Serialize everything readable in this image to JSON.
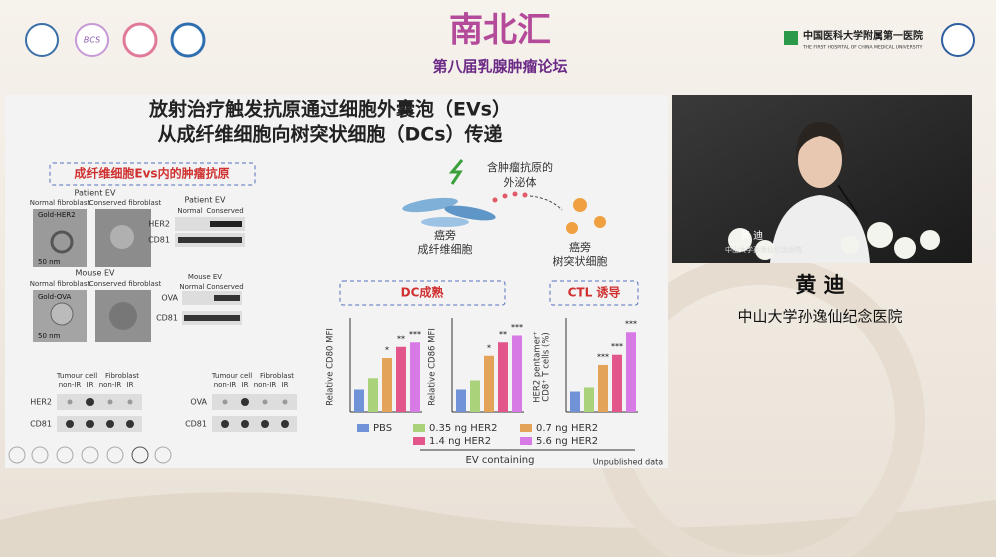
{
  "header": {
    "logo_left": "BCS",
    "title": "南北汇",
    "subtitle": "第八届乳腺肿瘤论坛",
    "hospital_cn": "中国医科大学附属第一医院",
    "hospital_en": "THE FIRST HOSPITAL OF CHINA MEDICAL UNIVERSITY"
  },
  "slide": {
    "title_lines": [
      "放射治疗触发抗原通过细胞外囊泡（EVs）",
      "从成纤维细胞向树突状细胞（DCs）传递"
    ],
    "section_label": "成纤维细胞Evs内的肿瘤抗原",
    "patient": {
      "heading": "Patient EV",
      "col1": "Normal fibroblast",
      "col2": "Conserved fibroblast",
      "gold": "Gold-HER2",
      "scale": "50 nm",
      "blot_heading": "Patient EV",
      "blot_col1": "Normal",
      "blot_col2": "Conserved",
      "row1": "HER2",
      "row2": "CD81"
    },
    "mouse": {
      "heading": "Mouse EV",
      "col1": "Normal fibroblast",
      "col2": "Conserved fibroblast",
      "gold": "Gold-OVA",
      "scale": "50 nm",
      "blot_heading": "Mouse EV",
      "blot_col1": "Normal",
      "blot_col2": "Conserved",
      "row1": "OVA",
      "row2": "CD81"
    },
    "dot_blots": [
      {
        "group1": "Tumour cell",
        "group2": "Fibroblast",
        "lanes": [
          "non-IR",
          "IR",
          "non-IR",
          "IR"
        ],
        "row1": "HER2",
        "row2": "CD81"
      },
      {
        "group1": "Tumour cell",
        "group2": "Fibroblast",
        "lanes": [
          "non-IR",
          "IR",
          "non-IR",
          "IR"
        ],
        "row1": "OVA",
        "row2": "CD81"
      }
    ],
    "diagram": {
      "exosome": [
        "含肿瘤抗原的",
        "外泌体"
      ],
      "fibroblast": [
        "癌旁",
        "成纤维细胞"
      ],
      "dc": [
        "癌旁",
        "树突状细胞"
      ]
    },
    "dc_label": "DC成熟",
    "ctl_label": "CTL 诱导",
    "legend": [
      {
        "name": "PBS",
        "color": "#6f93d6"
      },
      {
        "name": "0.35 ng HER2",
        "color": "#a9d27a"
      },
      {
        "name": "0.7 ng HER2",
        "color": "#e3a45a"
      },
      {
        "name": "1.4 ng HER2",
        "color": "#e2568c"
      },
      {
        "name": "5.6 ng HER2",
        "color": "#d77ae6"
      }
    ],
    "legend_caption": "EV containing",
    "note": "Unpublished data"
  },
  "chart_data": [
    {
      "type": "bar",
      "y_label": [
        "Relative CD80 MFI"
      ],
      "values": [
        1.0,
        1.5,
        2.4,
        2.9,
        3.1
      ],
      "significance": [
        null,
        null,
        "*",
        "**",
        "***"
      ],
      "ylim": [
        0,
        4
      ]
    },
    {
      "type": "bar",
      "y_label": [
        "Relative CD86 MFI"
      ],
      "values": [
        1.0,
        1.4,
        2.5,
        3.1,
        3.4
      ],
      "significance": [
        null,
        null,
        "*",
        "**",
        "***"
      ],
      "ylim": [
        0,
        4
      ]
    },
    {
      "type": "bar",
      "y_label": [
        "HER2 pentamer⁺",
        "CD8⁺ T cells (%)"
      ],
      "values": [
        1.0,
        1.2,
        2.3,
        2.8,
        3.9
      ],
      "significance": [
        null,
        null,
        "***",
        "***",
        "***"
      ],
      "ylim": [
        0,
        4.4
      ]
    }
  ],
  "speaker": {
    "name": "黄 迪",
    "affiliation": "中山大学孙逸仙纪念医院",
    "video_name": "黄 迪",
    "video_affiliation": "中山大学孙逸仙纪念医院"
  }
}
